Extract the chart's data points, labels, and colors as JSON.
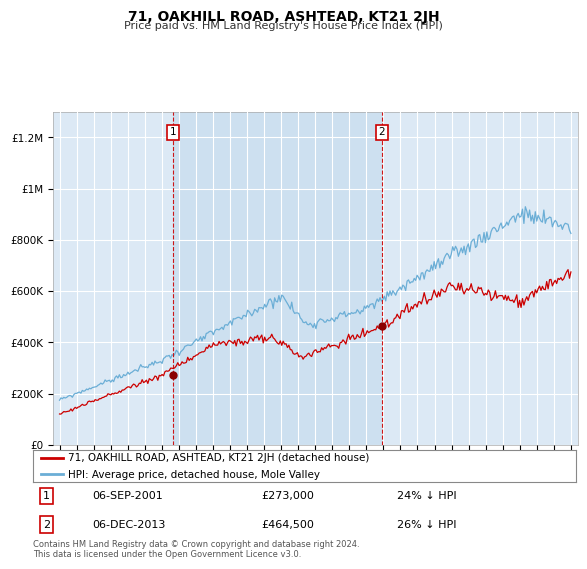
{
  "title": "71, OAKHILL ROAD, ASHTEAD, KT21 2JH",
  "subtitle": "Price paid vs. HM Land Registry's House Price Index (HPI)",
  "ylim": [
    0,
    1300000
  ],
  "yticks": [
    0,
    200000,
    400000,
    600000,
    800000,
    1000000,
    1200000
  ],
  "ytick_labels": [
    "£0",
    "£200K",
    "£400K",
    "£600K",
    "£800K",
    "£1M",
    "£1.2M"
  ],
  "x_start_year": 1995,
  "x_end_year": 2025,
  "hpi_color": "#6baed6",
  "price_color": "#cc0000",
  "marker_color": "#8b0000",
  "background_color": "#dce9f5",
  "highlight_color": "#ccdff0",
  "grid_color": "#ffffff",
  "sale1_year": 2001.67,
  "sale1_price": 273000,
  "sale2_year": 2013.92,
  "sale2_price": 464500,
  "annotation1": {
    "label": "1",
    "date_str": "06-SEP-2001",
    "price": "£273,000",
    "note": "24% ↓ HPI"
  },
  "annotation2": {
    "label": "2",
    "date_str": "06-DEC-2013",
    "price": "£464,500",
    "note": "26% ↓ HPI"
  },
  "legend_line1": "71, OAKHILL ROAD, ASHTEAD, KT21 2JH (detached house)",
  "legend_line2": "HPI: Average price, detached house, Mole Valley",
  "footer": "Contains HM Land Registry data © Crown copyright and database right 2024.\nThis data is licensed under the Open Government Licence v3.0."
}
